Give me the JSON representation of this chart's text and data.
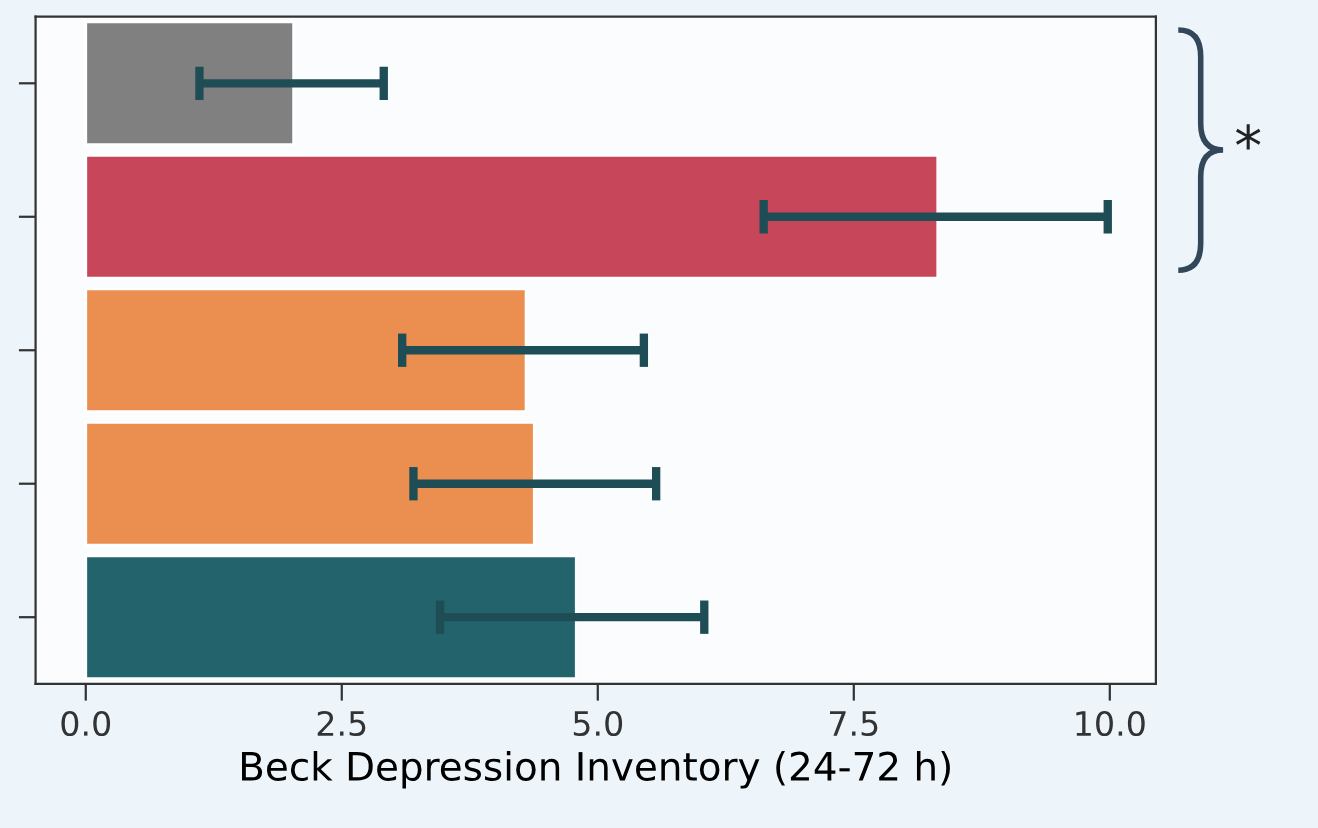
{
  "chart_data": {
    "type": "bar",
    "orientation": "horizontal",
    "xlabel": "Beck Depression Inventory (24-72 h)",
    "categories": [
      null,
      null,
      null,
      null,
      null
    ],
    "values": [
      2.03,
      8.32,
      4.3,
      4.38,
      4.79
    ],
    "colors": [
      "#808080",
      "#c8465a",
      "#eb8f50",
      "#eb8f50",
      "#22636c"
    ],
    "errors": [
      [
        1.11,
        2.91
      ],
      [
        6.62,
        9.98
      ],
      [
        3.09,
        5.45
      ],
      [
        3.2,
        5.57
      ],
      [
        3.46,
        6.04
      ]
    ],
    "xlim": [
      -0.49,
      10.45
    ],
    "xticks": [
      {
        "value": 0,
        "label": "0.0"
      },
      {
        "value": 2.5,
        "label": "2.5"
      },
      {
        "value": 5,
        "label": "5.0"
      },
      {
        "value": 7.5,
        "label": "7.5"
      },
      {
        "value": 10,
        "label": "10.0"
      }
    ],
    "grid": false,
    "annotations": [
      "*"
    ]
  }
}
